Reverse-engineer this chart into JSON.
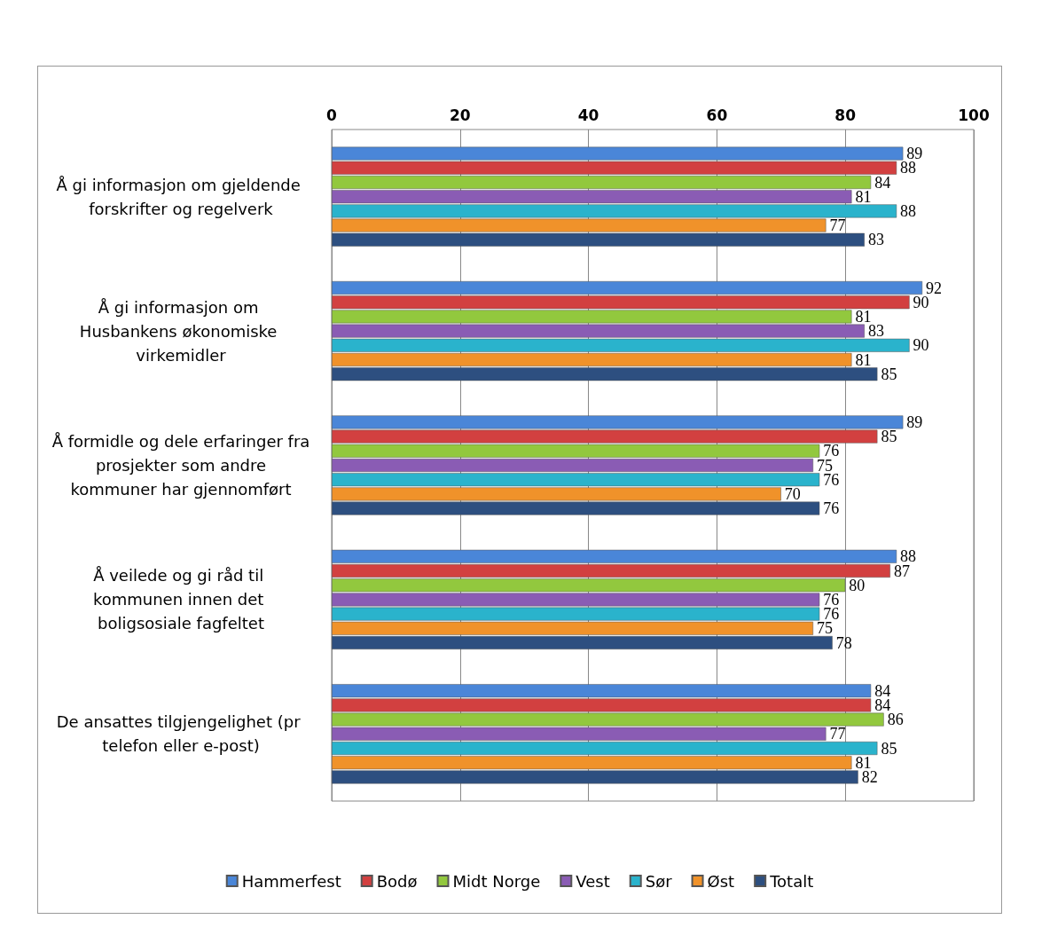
{
  "chart_data": {
    "type": "bar",
    "orientation": "horizontal",
    "categories": [
      "Å gi informasjon om gjeldende forskrifter og regelverk",
      "Å gi informasjon om Husbankens økonomiske virkemidler",
      "Å formidle og dele erfaringer fra prosjekter som andre kommuner har gjennomført",
      "Å veilede og gi råd til kommunen innen det boligsosiale fagfeltet",
      "De ansattes tilgjengelighet (pr telefon eller e-post)"
    ],
    "series": [
      {
        "name": "Hammerfest",
        "color": "#4a86d8",
        "values": [
          89,
          92,
          89,
          88,
          84
        ]
      },
      {
        "name": "Bodø",
        "color": "#d24040",
        "values": [
          88,
          90,
          85,
          87,
          84
        ]
      },
      {
        "name": "Midt Norge",
        "color": "#92c83e",
        "values": [
          84,
          81,
          76,
          80,
          86
        ]
      },
      {
        "name": "Vest",
        "color": "#8a5cb4",
        "values": [
          81,
          83,
          75,
          76,
          77
        ]
      },
      {
        "name": "Sør",
        "color": "#2ab3cc",
        "values": [
          88,
          90,
          76,
          76,
          85
        ]
      },
      {
        "name": "Øst",
        "color": "#f0922a",
        "values": [
          77,
          81,
          70,
          75,
          81
        ]
      },
      {
        "name": "Totalt",
        "color": "#2d4f80",
        "values": [
          83,
          85,
          76,
          78,
          82
        ]
      }
    ],
    "xlim": [
      0,
      100
    ],
    "xticks": [
      0,
      20,
      40,
      60,
      80,
      100
    ],
    "grid": "x",
    "legend": "bottom",
    "data_labels": true
  }
}
